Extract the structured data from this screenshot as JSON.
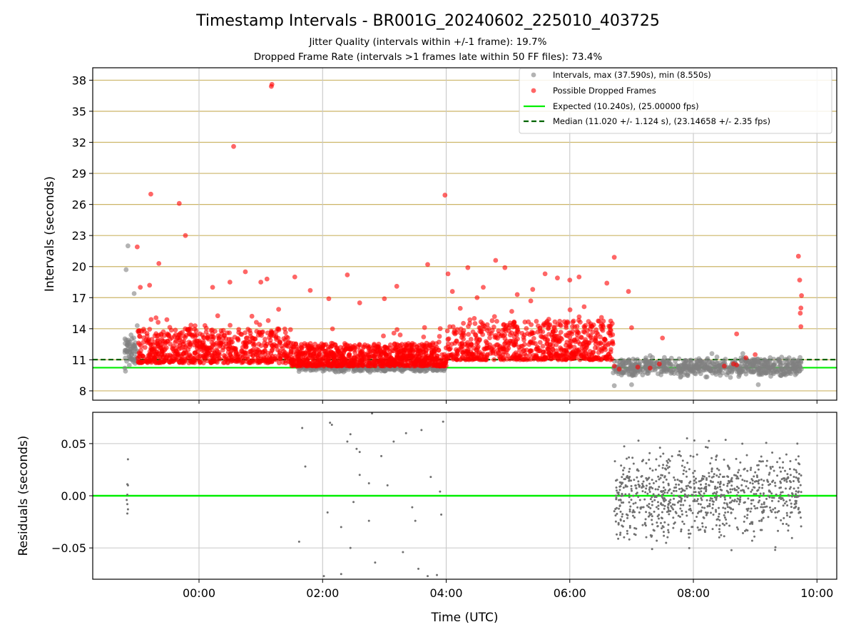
{
  "chart_data": [
    {
      "type": "scatter",
      "title": "Timestamp Intervals - BR001G_20240602_225010_403725",
      "subtitle_lines": [
        "Jitter Quality (intervals within +/-1 frame): 19.7%",
        "Dropped Frame Rate (intervals >1 frames late within 50 FF files): 73.4%"
      ],
      "xlabel": "",
      "ylabel": "Intervals (seconds)",
      "ylim": [
        7.1,
        39.2
      ],
      "xlim": [
        -1.72,
        10.32
      ],
      "y_ticks": [
        "8",
        "11",
        "14",
        "17",
        "20",
        "23",
        "26",
        "29",
        "32",
        "35",
        "38"
      ],
      "y_tick_values": [
        8,
        11,
        14,
        17,
        20,
        23,
        26,
        29,
        32,
        35,
        38
      ],
      "horizontal_grid_color": "#ccb567",
      "legend_position": "upper right",
      "legend": [
        "Intervals, max (37.590s), min (8.550s)",
        "Possible Dropped Frames",
        "Expected (10.240s), (25.00000 fps)",
        "Median (11.020 +/- 1.124 s), (23.14658 +/- 2.35 fps)"
      ],
      "reference_lines": [
        {
          "label": "Expected",
          "y": 10.24,
          "style": "solid",
          "color": "#00ee00"
        },
        {
          "label": "Median",
          "y": 11.02,
          "style": "dashed",
          "color": "#006400"
        }
      ],
      "series": [
        {
          "name": "Intervals",
          "color": "#808080",
          "points": [
            [
              -1.15,
              22.0
            ],
            [
              -1.18,
              19.7
            ],
            [
              -1.2,
              10.2
            ],
            [
              -1.19,
              9.9
            ],
            [
              -1.1,
              13.4
            ],
            [
              -1.05,
              17.4
            ],
            [
              -1.0,
              14.3
            ],
            [
              2.5,
              10.2
            ],
            [
              3.0,
              10.0
            ],
            [
              3.5,
              9.9
            ],
            [
              3.85,
              10.0
            ],
            [
              6.72,
              8.5
            ],
            [
              7.0,
              8.6
            ],
            [
              7.3,
              11.4
            ],
            [
              7.8,
              9.4
            ],
            [
              8.3,
              11.6
            ],
            [
              8.6,
              9.3
            ],
            [
              8.8,
              11.6
            ],
            [
              9.05,
              8.6
            ],
            [
              9.55,
              11.2
            ],
            [
              9.72,
              10.4
            ]
          ],
          "dense_regions": [
            {
              "x_range": [
                -1.2,
                -1.0
              ],
              "y_range": [
                10.2,
                13.5
              ]
            },
            {
              "x_range": [
                1.6,
                4.0
              ],
              "y_range": [
                9.8,
                10.6
              ]
            },
            {
              "x_range": [
                6.7,
                9.75
              ],
              "y_range": [
                9.3,
                11.3
              ]
            }
          ]
        },
        {
          "name": "Possible Dropped Frames",
          "color": "#ff0000",
          "points": [
            [
              -0.78,
              27.0
            ],
            [
              -0.32,
              26.1
            ],
            [
              -0.22,
              23.0
            ],
            [
              0.56,
              31.6
            ],
            [
              1.17,
              37.4
            ],
            [
              1.18,
              37.6
            ],
            [
              3.98,
              26.9
            ],
            [
              -1.0,
              21.9
            ],
            [
              -0.65,
              20.3
            ],
            [
              0.75,
              19.5
            ],
            [
              1.1,
              18.8
            ],
            [
              3.7,
              20.2
            ],
            [
              4.03,
              19.3
            ],
            [
              4.35,
              19.9
            ],
            [
              4.8,
              20.6
            ],
            [
              4.95,
              19.9
            ],
            [
              5.6,
              19.3
            ],
            [
              6.72,
              20.9
            ],
            [
              9.7,
              21.0
            ],
            [
              -0.95,
              18.0
            ],
            [
              -0.8,
              18.2
            ],
            [
              0.22,
              18.0
            ],
            [
              0.5,
              18.5
            ],
            [
              1.0,
              18.5
            ],
            [
              1.55,
              19.0
            ],
            [
              1.8,
              17.7
            ],
            [
              2.1,
              16.9
            ],
            [
              2.4,
              19.2
            ],
            [
              2.6,
              16.5
            ],
            [
              3.0,
              16.9
            ],
            [
              3.2,
              18.1
            ],
            [
              4.1,
              17.6
            ],
            [
              4.5,
              17.0
            ],
            [
              4.6,
              18.0
            ],
            [
              5.15,
              17.3
            ],
            [
              5.4,
              17.8
            ],
            [
              5.8,
              18.9
            ],
            [
              6.0,
              18.7
            ],
            [
              6.15,
              19.0
            ],
            [
              6.6,
              18.4
            ],
            [
              6.95,
              17.6
            ],
            [
              7.0,
              14.1
            ],
            [
              7.5,
              13.1
            ],
            [
              8.7,
              13.5
            ],
            [
              9.0,
              11.5
            ],
            [
              9.72,
              18.7
            ],
            [
              9.75,
              17.2
            ],
            [
              9.74,
              16.0
            ],
            [
              9.73,
              15.5
            ],
            [
              9.74,
              14.2
            ],
            [
              6.72,
              10.4
            ],
            [
              6.8,
              10.1
            ],
            [
              7.1,
              10.3
            ],
            [
              7.3,
              10.2
            ],
            [
              7.45,
              10.6
            ],
            [
              8.5,
              10.4
            ],
            [
              8.65,
              10.6
            ],
            [
              8.7,
              10.5
            ],
            [
              8.85,
              11.2
            ]
          ],
          "dense_regions": [
            {
              "x_range": [
                -1.0,
                1.5
              ],
              "y_range": [
                10.7,
                14.0
              ]
            },
            {
              "x_range": [
                1.5,
                4.0
              ],
              "y_range": [
                10.4,
                12.6
              ]
            },
            {
              "x_range": [
                4.0,
                6.7
              ],
              "y_range": [
                11.0,
                14.8
              ]
            }
          ]
        }
      ]
    },
    {
      "type": "scatter",
      "title": "",
      "xlabel": "Time (UTC)",
      "ylabel": "Residuals (seconds)",
      "ylim": [
        -0.08,
        0.08
      ],
      "xlim": [
        -1.72,
        10.32
      ],
      "x_ticks": [
        "00:00",
        "02:00",
        "04:00",
        "06:00",
        "08:00",
        "10:00"
      ],
      "x_tick_hours": [
        0,
        2,
        4,
        6,
        8,
        10
      ],
      "y_ticks": [
        "0.05",
        "0.00",
        "−0.05"
      ],
      "y_tick_values": [
        0.05,
        0.0,
        -0.05
      ],
      "reference_lines": [
        {
          "label": "zero",
          "y": 0.0,
          "style": "solid",
          "color": "#00ee00"
        }
      ],
      "series": [
        {
          "name": "Residuals",
          "color": "#707070",
          "points": [
            [
              -1.15,
              0.035
            ],
            [
              -1.16,
              0.011
            ],
            [
              -1.15,
              0.01
            ],
            [
              -1.16,
              0.001
            ],
            [
              -1.17,
              -0.004
            ],
            [
              -1.16,
              -0.008
            ],
            [
              -1.15,
              -0.013
            ],
            [
              -1.16,
              -0.017
            ],
            [
              1.62,
              -0.044
            ],
            [
              1.67,
              0.065
            ],
            [
              1.72,
              0.028
            ],
            [
              2.02,
              -0.077
            ],
            [
              2.08,
              -0.016
            ],
            [
              2.12,
              0.07
            ],
            [
              2.15,
              0.068
            ],
            [
              2.3,
              -0.03
            ],
            [
              2.3,
              -0.075
            ],
            [
              2.4,
              0.052
            ],
            [
              2.45,
              0.059
            ],
            [
              2.45,
              -0.05
            ],
            [
              2.5,
              -0.006
            ],
            [
              2.55,
              0.045
            ],
            [
              2.6,
              0.042
            ],
            [
              2.6,
              0.02
            ],
            [
              2.75,
              0.012
            ],
            [
              2.75,
              -0.024
            ],
            [
              2.8,
              0.079
            ],
            [
              2.85,
              -0.064
            ],
            [
              2.95,
              0.038
            ],
            [
              3.05,
              0.01
            ],
            [
              3.15,
              0.052
            ],
            [
              3.3,
              -0.054
            ],
            [
              3.35,
              0.06
            ],
            [
              3.45,
              -0.011
            ],
            [
              3.5,
              -0.024
            ],
            [
              3.55,
              -0.07
            ],
            [
              3.6,
              0.063
            ],
            [
              3.7,
              -0.077
            ],
            [
              3.75,
              0.018
            ],
            [
              3.85,
              -0.076
            ],
            [
              3.9,
              0.004
            ],
            [
              3.92,
              -0.018
            ],
            [
              3.95,
              0.071
            ]
          ],
          "dense_regions": [
            {
              "x_range": [
                6.72,
                9.75
              ],
              "y_range": [
                -0.05,
                0.055
              ]
            }
          ]
        }
      ]
    }
  ]
}
